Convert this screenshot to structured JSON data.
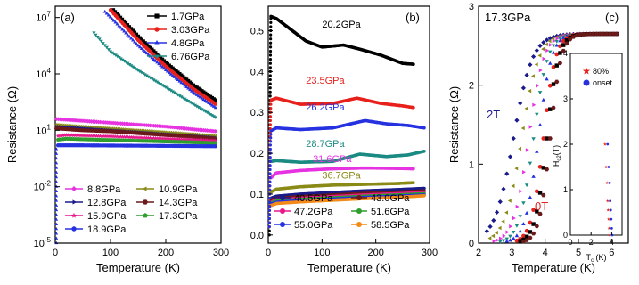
{
  "chart_data": [
    {
      "panel": "(a)",
      "type": "line",
      "xlabel": "Temperature (K)",
      "ylabel": "Resistance (Ω)",
      "xlim": [
        0,
        300
      ],
      "ylim_log10": [
        -5,
        7.6
      ],
      "y_scale": "log",
      "xticks": [
        "0",
        "100",
        "200",
        "300"
      ],
      "yticks": [
        {
          "base": "10",
          "exp": "-5",
          "log10": -5
        },
        {
          "base": "10",
          "exp": "-2",
          "log10": -2
        },
        {
          "base": "10",
          "exp": "1",
          "log10": 1
        },
        {
          "base": "10",
          "exp": "4",
          "log10": 4
        },
        {
          "base": "10",
          "exp": "7",
          "log10": 7
        }
      ],
      "series": [
        {
          "name": "1.7GPa",
          "color": "#000000",
          "marker": "square",
          "x": [
            105,
            150,
            200,
            250,
            290
          ],
          "y_log10": [
            7.4,
            6.0,
            4.6,
            3.4,
            2.6
          ]
        },
        {
          "name": "3.03GPa",
          "color": "#e8211c",
          "marker": "circle",
          "x": [
            100,
            150,
            200,
            250,
            290
          ],
          "y_log10": [
            7.4,
            5.8,
            4.4,
            3.2,
            2.4
          ]
        },
        {
          "name": "4.8GPa",
          "color": "#2632e0",
          "marker": "triangle",
          "x": [
            90,
            150,
            200,
            250,
            290
          ],
          "y_log10": [
            7.3,
            5.5,
            4.2,
            3.0,
            2.2
          ]
        },
        {
          "name": "6.76GPa",
          "color": "#1a8a82",
          "marker": "triangle-down",
          "x": [
            70,
            100,
            150,
            200,
            250,
            290
          ],
          "y_log10": [
            6.2,
            5.2,
            4.2,
            3.3,
            2.4,
            1.7
          ]
        },
        {
          "name": "8.8GPa",
          "color": "#e633e0",
          "marker": "diamond",
          "x": [
            2,
            50,
            100,
            150,
            200,
            250,
            290
          ],
          "y_log10": [
            1.6,
            1.5,
            1.4,
            1.3,
            1.2,
            1.05,
            0.95
          ]
        },
        {
          "name": "10.9GPa",
          "color": "#8a8a18",
          "marker": "triangle-left",
          "x": [
            2,
            50,
            100,
            150,
            200,
            250,
            290
          ],
          "y_log10": [
            1.3,
            1.2,
            1.1,
            1.0,
            0.9,
            0.8,
            0.7
          ]
        },
        {
          "name": "12.8GPa",
          "color": "#1a1a8a",
          "marker": "triangle-right",
          "x": [
            2,
            50,
            100,
            150,
            200,
            250,
            290
          ],
          "y_log10": [
            1.2,
            1.1,
            1.0,
            0.9,
            0.8,
            0.7,
            0.6
          ]
        },
        {
          "name": "14.3GPa",
          "color": "#6b1a1a",
          "marker": "hexagon",
          "x": [
            2,
            50,
            100,
            150,
            200,
            250,
            290
          ],
          "y_log10": [
            1.1,
            1.0,
            0.95,
            0.85,
            0.75,
            0.65,
            0.55
          ]
        },
        {
          "name": "15.9GPa",
          "color": "#e8188c",
          "marker": "star",
          "x": [
            5,
            20,
            50,
            100,
            150,
            200,
            250,
            290
          ],
          "y_log10": [
            0.7,
            0.75,
            0.72,
            0.68,
            0.62,
            0.56,
            0.5,
            0.45
          ]
        },
        {
          "name": "17.3GPa",
          "color": "#2e9e2e",
          "marker": "pentagon",
          "x": [
            5,
            20,
            50,
            100,
            150,
            200,
            250,
            290
          ],
          "y_log10": [
            0.5,
            0.55,
            0.52,
            0.48,
            0.44,
            0.4,
            0.36,
            0.32
          ]
        },
        {
          "name": "18.9GPa",
          "color": "#2632e0",
          "marker": "triangle-up-small",
          "x": [
            5,
            50,
            100,
            150,
            200,
            250,
            290
          ],
          "y_log10": [
            0.2,
            0.2,
            0.19,
            0.18,
            0.17,
            0.16,
            0.15
          ]
        }
      ]
    },
    {
      "panel": "(b)",
      "type": "line",
      "xlabel": "Temperature (K)",
      "ylabel": "",
      "xlim": [
        0,
        300
      ],
      "ylim": [
        -0.02,
        0.56
      ],
      "xticks": [
        "0",
        "100",
        "200",
        "300"
      ],
      "yticks": [
        "0.0",
        "0.1",
        "0.2",
        "0.3",
        "0.4",
        "0.5"
      ],
      "series": [
        {
          "name": "20.2GPa",
          "label_x": 100,
          "label_y": 0.508,
          "color": "#000000",
          "x": [
            5,
            15,
            40,
            70,
            100,
            140,
            170,
            210,
            250,
            270
          ],
          "y": [
            0.535,
            0.53,
            0.505,
            0.475,
            0.46,
            0.465,
            0.455,
            0.44,
            0.42,
            0.418
          ]
        },
        {
          "name": "23.5GPa",
          "label_x": 70,
          "label_y": 0.37,
          "color": "#e8211c",
          "x": [
            5,
            15,
            60,
            120,
            165,
            210,
            250,
            270
          ],
          "y": [
            0.33,
            0.335,
            0.32,
            0.322,
            0.335,
            0.322,
            0.316,
            0.312
          ]
        },
        {
          "name": "26.2GPa",
          "label_x": 70,
          "label_y": 0.305,
          "color": "#2632e0",
          "x": [
            5,
            15,
            60,
            120,
            180,
            220,
            260,
            290
          ],
          "y": [
            0.255,
            0.262,
            0.258,
            0.262,
            0.28,
            0.272,
            0.268,
            0.262
          ]
        },
        {
          "name": "28.7GPa",
          "label_x": 70,
          "label_y": 0.215,
          "color": "#1a8a82",
          "x": [
            5,
            15,
            60,
            120,
            170,
            220,
            260,
            290
          ],
          "y": [
            0.18,
            0.182,
            0.178,
            0.18,
            0.198,
            0.192,
            0.196,
            0.205
          ]
        },
        {
          "name": "31.6GPa",
          "label_x": 83,
          "label_y": 0.178,
          "color": "#e633e0",
          "x": [
            5,
            15,
            60,
            120,
            180,
            240,
            270
          ],
          "y": [
            0.14,
            0.152,
            0.158,
            0.162,
            0.164,
            0.163,
            0.162
          ]
        },
        {
          "name": "36.7GPa",
          "label_x": 100,
          "label_y": 0.138,
          "color": "#8a8a18",
          "x": [
            5,
            15,
            60,
            120,
            180,
            240,
            270
          ],
          "y": [
            0.105,
            0.112,
            0.118,
            0.122,
            0.124,
            0.126,
            0.128
          ]
        },
        {
          "name": "40.5GPa",
          "color": "#1a1a8a",
          "x": [
            5,
            15,
            60,
            120,
            180,
            240,
            290
          ],
          "y": [
            0.09,
            0.095,
            0.1,
            0.104,
            0.108,
            0.111,
            0.114
          ]
        },
        {
          "name": "43.0GPa",
          "color": "#6b1a1a",
          "x": [
            5,
            15,
            60,
            120,
            180,
            240,
            290
          ],
          "y": [
            0.085,
            0.09,
            0.094,
            0.098,
            0.102,
            0.105,
            0.108
          ]
        },
        {
          "name": "47.2GPa",
          "color": "#e8188c",
          "x": [
            5,
            15,
            60,
            120,
            180,
            240,
            290
          ],
          "y": [
            0.08,
            0.086,
            0.09,
            0.094,
            0.098,
            0.101,
            0.104
          ]
        },
        {
          "name": "51.6GPa",
          "color": "#2e9e2e",
          "x": [
            5,
            15,
            60,
            120,
            180,
            240,
            290
          ],
          "y": [
            0.078,
            0.083,
            0.087,
            0.091,
            0.095,
            0.098,
            0.101
          ]
        },
        {
          "name": "55.0GPa",
          "color": "#2632e0",
          "x": [
            5,
            15,
            60,
            120,
            180,
            240,
            290
          ],
          "y": [
            0.075,
            0.08,
            0.084,
            0.088,
            0.092,
            0.095,
            0.098
          ]
        },
        {
          "name": "58.5GPa",
          "color": "#f28a1a",
          "x": [
            5,
            15,
            60,
            120,
            180,
            240,
            290
          ],
          "y": [
            0.072,
            0.077,
            0.081,
            0.085,
            0.089,
            0.092,
            0.096
          ]
        }
      ],
      "dropoff": [
        {
          "color": "#000000",
          "x": [
            2,
            2.4,
            2.8,
            3.2,
            3.6,
            4.0,
            4.4,
            4.8
          ],
          "y": [
            0.0,
            0.06,
            0.14,
            0.24,
            0.34,
            0.42,
            0.49,
            0.53
          ]
        },
        {
          "color": "#e8211c",
          "x": [
            2,
            3,
            4,
            5
          ],
          "y": [
            0.02,
            0.15,
            0.28,
            0.33
          ]
        },
        {
          "color": "#2632e0",
          "x": [
            2,
            3,
            4,
            5
          ],
          "y": [
            0.02,
            0.12,
            0.22,
            0.255
          ]
        }
      ]
    },
    {
      "panel": "(c)",
      "type": "scatter",
      "xlabel": "Temperature (K)",
      "ylabel": "Resistance (Ω)",
      "xlim": [
        2,
        6.5
      ],
      "ylim": [
        0,
        3
      ],
      "xticks": [
        "2",
        "3",
        "4",
        "5",
        "6"
      ],
      "yticks": [
        "0",
        "1",
        "2",
        "3"
      ],
      "annotation_pressure": "17.3GPa",
      "annotation_low_field": "0T",
      "annotation_high_field": "2T",
      "field_curves": [
        {
          "color": "#1a1a8a",
          "marker": "diamond",
          "tc": 3.05,
          "width": 0.95
        },
        {
          "color": "#8a8a18",
          "marker": "triangle-left",
          "tc": 3.3,
          "width": 0.85
        },
        {
          "color": "#e633e0",
          "marker": "triangle-right",
          "tc": 3.5,
          "width": 0.75
        },
        {
          "color": "#1a8a82",
          "marker": "triangle-down",
          "tc": 3.65,
          "width": 0.7
        },
        {
          "color": "#2632e0",
          "marker": "triangle",
          "tc": 3.8,
          "width": 0.65
        },
        {
          "color": "#e8211c",
          "marker": "circle",
          "tc": 3.95,
          "width": 0.6
        },
        {
          "color": "#000000",
          "marker": "square",
          "tc": 4.05,
          "width": 0.58
        },
        {
          "color": "#6b1a1a",
          "marker": "hexagon",
          "tc": 4.15,
          "width": 0.55
        }
      ],
      "normal_state_resistance": 2.65
    },
    {
      "panel": "(c) inset",
      "type": "scatter",
      "xlabel": "T",
      "xlabel_sub": "c",
      "xlabel_unit": " (K)",
      "ylabel": "H",
      "ylabel_sub": "c2",
      "ylabel_unit": "(T)",
      "xlim": [
        0,
        5
      ],
      "ylim": [
        0,
        4
      ],
      "xticks": [
        "0",
        "2",
        "4"
      ],
      "yticks": [
        "0",
        "1",
        "2",
        "3",
        "4"
      ],
      "legend": [
        {
          "label": "80%",
          "color": "#e8211c",
          "marker": "star"
        },
        {
          "label": "onset",
          "color": "#2632e0",
          "marker": "circle"
        }
      ],
      "series": [
        {
          "name": "80%",
          "color": "#e8211c",
          "x": [
            3.35,
            3.45,
            3.55,
            3.6,
            3.65,
            3.7,
            3.75,
            3.8
          ],
          "y": [
            2.0,
            1.5,
            1.15,
            0.75,
            0.55,
            0.35,
            0.15,
            0.0
          ]
        },
        {
          "name": "onset",
          "color": "#2632e0",
          "x": [
            3.6,
            3.7,
            3.8,
            3.85,
            3.9,
            3.95,
            4.0,
            4.05
          ],
          "y": [
            2.0,
            1.5,
            1.15,
            0.75,
            0.55,
            0.35,
            0.15,
            0.0
          ]
        }
      ]
    }
  ]
}
